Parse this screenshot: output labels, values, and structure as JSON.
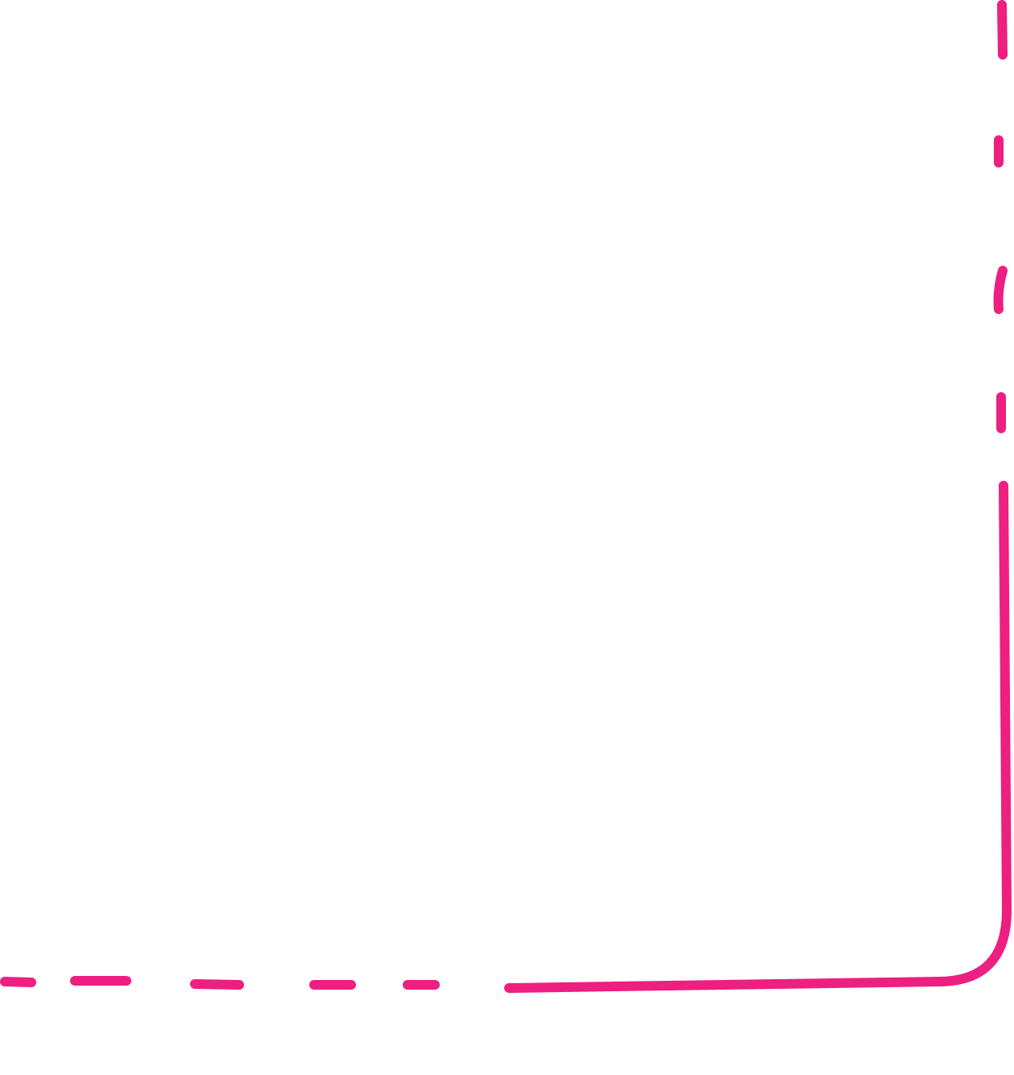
{
  "decoration": {
    "stroke_color": "#ED1F80",
    "background_color": "#FFFFFF",
    "shape": "corner-bracket",
    "segments": [
      {
        "name": "right-dash-1",
        "style": "dashed"
      },
      {
        "name": "right-dash-2",
        "style": "dashed"
      },
      {
        "name": "right-dash-3",
        "style": "dashed"
      },
      {
        "name": "right-dash-4",
        "style": "dashed"
      },
      {
        "name": "bottom-dash-1",
        "style": "dashed"
      },
      {
        "name": "bottom-dash-2",
        "style": "dashed"
      },
      {
        "name": "bottom-dash-3",
        "style": "dashed"
      },
      {
        "name": "bottom-dash-4",
        "style": "dashed"
      },
      {
        "name": "bottom-dash-5",
        "style": "dashed"
      },
      {
        "name": "corner-solid-line",
        "style": "solid"
      }
    ]
  }
}
